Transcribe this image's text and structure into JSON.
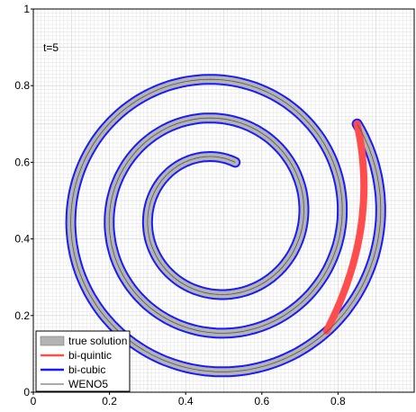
{
  "chart_data": {
    "type": "line",
    "title": "",
    "xlabel": "",
    "ylabel": "",
    "xlim": [
      0,
      1
    ],
    "ylim": [
      0,
      1
    ],
    "grid": true,
    "annotation": "t=5",
    "x_ticks": [
      "0",
      "0.2",
      "0.4",
      "0.6",
      "0.8"
    ],
    "y_ticks": [
      "0",
      "0.2",
      "0.4",
      "0.6",
      "0.8",
      "1"
    ],
    "legend": {
      "placement": "bottom-left",
      "entries": [
        {
          "name": "true solution",
          "color": "#b3b3b3"
        },
        {
          "name": "bi-quintic",
          "color": "#ff4d4d"
        },
        {
          "name": "bi-cubic",
          "color": "#1a1aff"
        },
        {
          "name": "WENO5",
          "color": "#555555"
        }
      ]
    },
    "spiral": {
      "center": [
        0.48,
        0.46
      ],
      "inner_end": [
        0.53,
        0.6
      ],
      "outer_end": [
        0.85,
        0.7
      ],
      "tail_end": [
        0.77,
        0.16
      ]
    }
  }
}
